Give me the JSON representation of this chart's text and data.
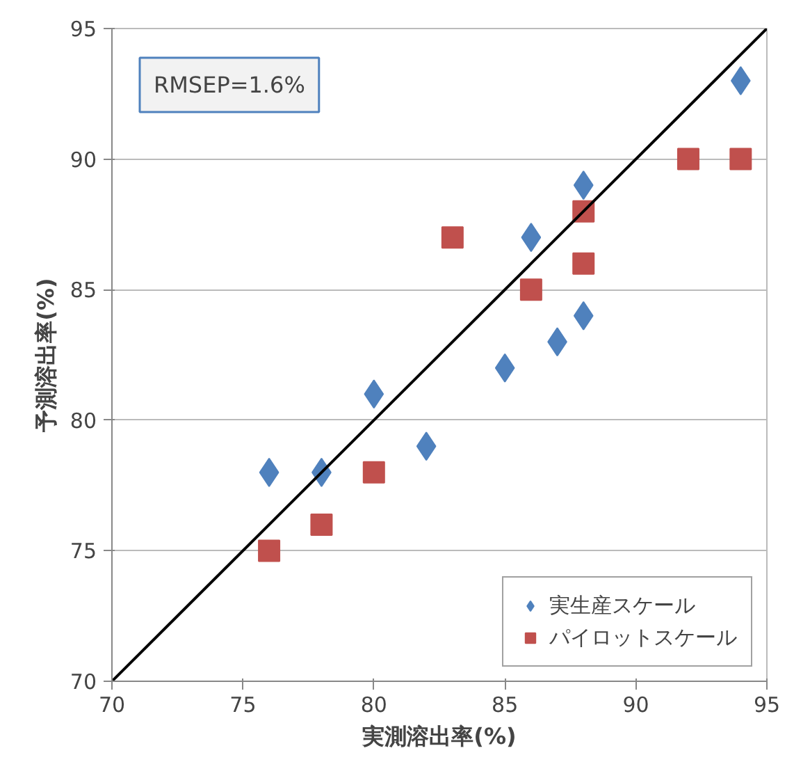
{
  "chart_data": {
    "type": "scatter",
    "xlabel": "実測溶出率(%)",
    "ylabel": "予測溶出率(%)",
    "xlim": [
      70,
      95
    ],
    "ylim": [
      70,
      95
    ],
    "xticks": [
      70,
      75,
      80,
      85,
      90,
      95
    ],
    "yticks": [
      70,
      75,
      80,
      85,
      90,
      95
    ],
    "grid": "y",
    "legend": "bottom right",
    "annotations": [
      "RMSEP=1.6%"
    ],
    "series": [
      {
        "name": "実生産スケール",
        "color": "#4f81bd",
        "marker": "diamond",
        "x": [
          76,
          78,
          80,
          82,
          85,
          86,
          87,
          88,
          88,
          94
        ],
        "values": [
          78,
          78,
          81,
          79,
          82,
          87,
          83,
          84,
          89,
          93
        ]
      },
      {
        "name": "パイロットスケール",
        "color": "#c0504d",
        "marker": "square",
        "x": [
          76,
          78,
          80,
          83,
          86,
          88,
          88,
          92,
          94
        ],
        "values": [
          75,
          76,
          78,
          87,
          85,
          88,
          86,
          90,
          90
        ]
      },
      {
        "type": "line",
        "color": "#000000",
        "marker": "none",
        "x": [
          70,
          95
        ],
        "values": [
          70,
          95
        ]
      }
    ]
  }
}
